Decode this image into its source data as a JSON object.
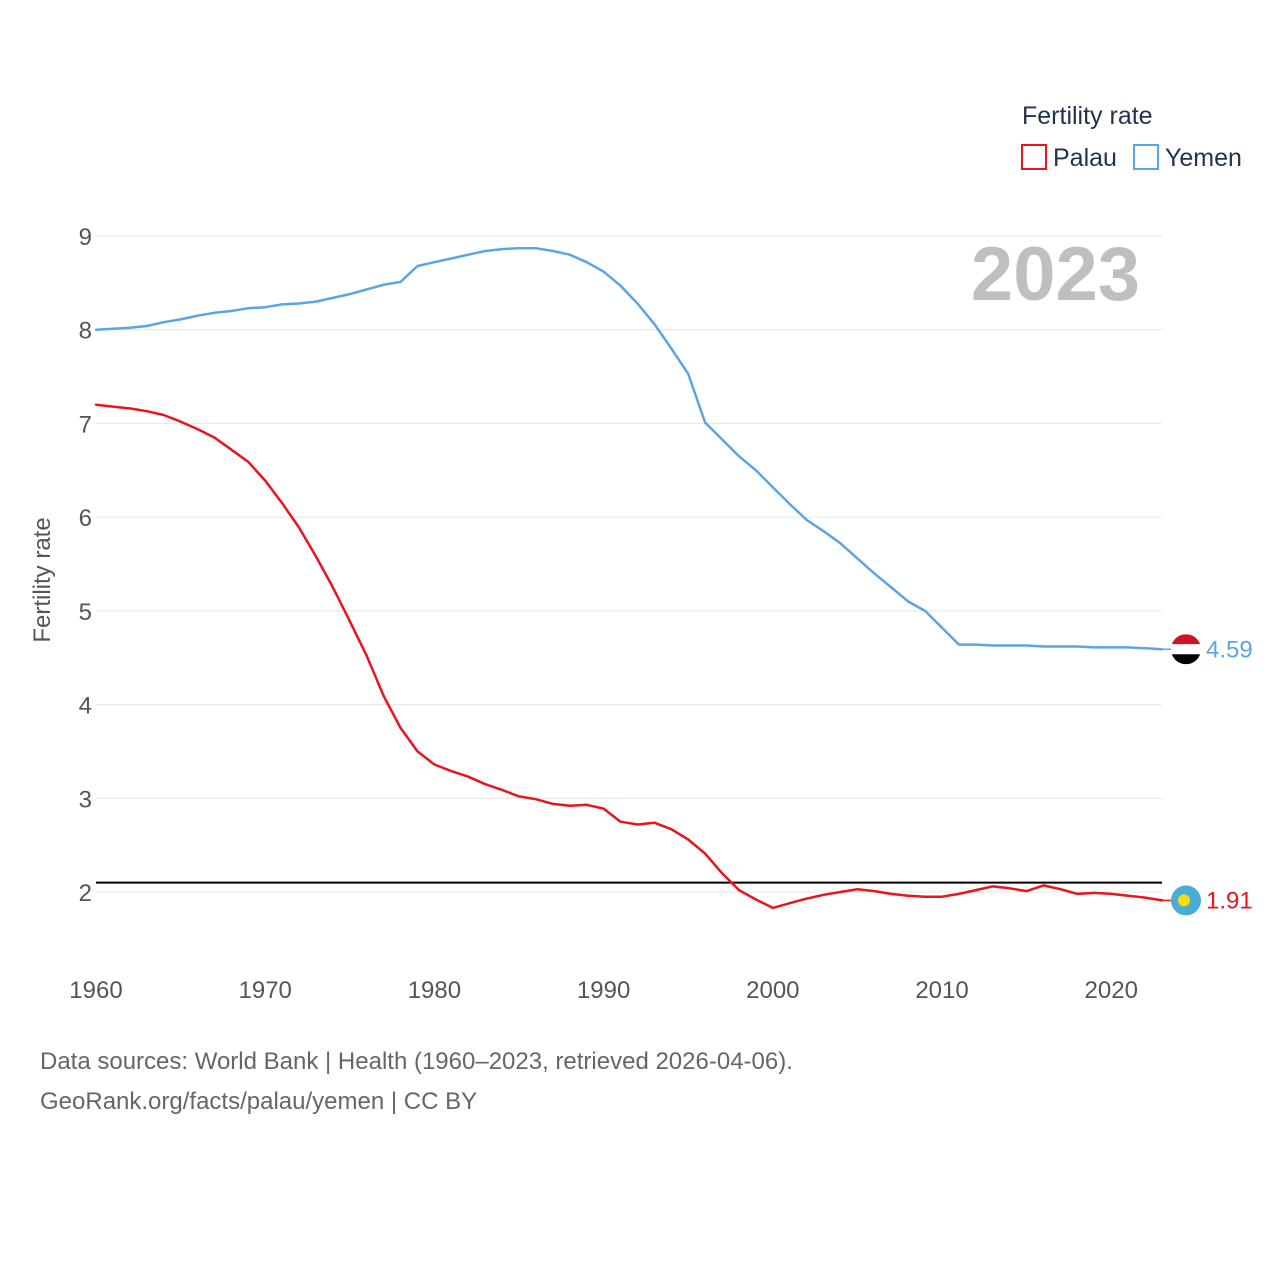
{
  "chart_data": {
    "type": "line",
    "title": "",
    "year_label": "2023",
    "ylabel": "Fertility rate",
    "xlabel": "",
    "xlim": [
      1960,
      2023
    ],
    "ylim": [
      1,
      9.5
    ],
    "x_ticks": [
      1960,
      1970,
      1980,
      1990,
      2000,
      2010,
      2020
    ],
    "y_ticks": [
      2,
      3,
      4,
      5,
      6,
      7,
      8,
      9
    ],
    "grid": true,
    "legend": {
      "title": "Fertility rate",
      "position": "top-right",
      "entries": [
        "Palau",
        "Yemen"
      ]
    },
    "reference_line": {
      "value": 2.1,
      "color": "#000000"
    },
    "x": [
      1960,
      1961,
      1962,
      1963,
      1964,
      1965,
      1966,
      1967,
      1968,
      1969,
      1970,
      1971,
      1972,
      1973,
      1974,
      1975,
      1976,
      1977,
      1978,
      1979,
      1980,
      1981,
      1982,
      1983,
      1984,
      1985,
      1986,
      1987,
      1988,
      1989,
      1990,
      1991,
      1992,
      1993,
      1994,
      1995,
      1996,
      1997,
      1998,
      1999,
      2000,
      2001,
      2002,
      2003,
      2004,
      2005,
      2006,
      2007,
      2008,
      2009,
      2010,
      2011,
      2012,
      2013,
      2014,
      2015,
      2016,
      2017,
      2018,
      2019,
      2020,
      2021,
      2022,
      2023
    ],
    "series": [
      {
        "name": "Palau",
        "color": "#e8141e",
        "end_label": "1.91",
        "values": [
          7.2,
          7.18,
          7.16,
          7.13,
          7.09,
          7.02,
          6.94,
          6.85,
          6.72,
          6.59,
          6.39,
          6.15,
          5.89,
          5.58,
          5.25,
          4.89,
          4.52,
          4.09,
          3.75,
          3.5,
          3.36,
          3.29,
          3.23,
          3.15,
          3.09,
          3.02,
          2.99,
          2.94,
          2.92,
          2.93,
          2.89,
          2.75,
          2.72,
          2.74,
          2.67,
          2.56,
          2.41,
          2.2,
          2.02,
          1.92,
          1.83,
          1.88,
          1.93,
          1.97,
          2.0,
          2.03,
          2.01,
          1.98,
          1.96,
          1.95,
          1.95,
          1.98,
          2.02,
          2.06,
          2.04,
          2.01,
          2.07,
          2.03,
          1.98,
          1.99,
          1.98,
          1.96,
          1.94,
          1.91
        ]
      },
      {
        "name": "Yemen",
        "color": "#5ba4e5",
        "end_label": "4.59",
        "values": [
          8.0,
          8.01,
          8.02,
          8.04,
          8.08,
          8.11,
          8.15,
          8.18,
          8.2,
          8.23,
          8.24,
          8.27,
          8.28,
          8.3,
          8.34,
          8.38,
          8.43,
          8.48,
          8.51,
          8.68,
          8.72,
          8.76,
          8.8,
          8.84,
          8.86,
          8.87,
          8.87,
          8.84,
          8.8,
          8.72,
          8.62,
          8.47,
          8.28,
          8.06,
          7.8,
          7.53,
          7.01,
          6.83,
          6.65,
          6.5,
          6.32,
          6.14,
          5.97,
          5.85,
          5.72,
          5.56,
          5.4,
          5.25,
          5.1,
          5.0,
          4.82,
          4.64,
          4.64,
          4.63,
          4.63,
          4.63,
          4.62,
          4.62,
          4.62,
          4.61,
          4.61,
          4.61,
          4.6,
          4.59
        ]
      }
    ]
  },
  "footer": {
    "line1": "Data sources: World Bank | Health (1960–2023, retrieved 2026-04-06).",
    "line2": "GeoRank.org/facts/palau/yemen | CC BY"
  }
}
